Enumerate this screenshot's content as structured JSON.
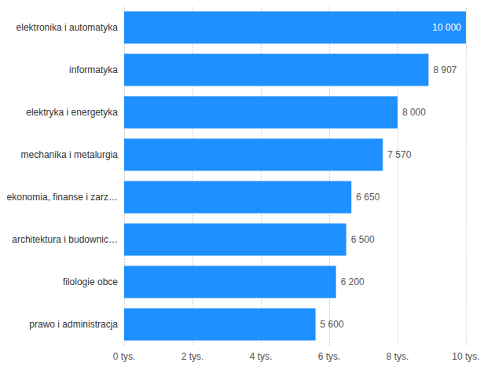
{
  "chart_data": {
    "type": "bar",
    "orientation": "horizontal",
    "categories": [
      "elektronika i automatyka",
      "informatyka",
      "elektryka i energetyka",
      "mechanika i metalurgia",
      "ekonomia, finanse i zarz…",
      "architektura i budownic…",
      "filologie obce",
      "prawo i administracja"
    ],
    "values": [
      10000,
      8907,
      8000,
      7570,
      6650,
      6500,
      6200,
      5600
    ],
    "value_labels": [
      "10 000",
      "8 907",
      "8 000",
      "7 570",
      "6 650",
      "6 500",
      "6 200",
      "5 600"
    ],
    "color": "#1e90ff",
    "xlim": [
      0,
      10000
    ],
    "xticks": [
      {
        "value": 0,
        "label": "0 tys."
      },
      {
        "value": 2000,
        "label": "2 tys."
      },
      {
        "value": 4000,
        "label": "4 tys."
      },
      {
        "value": 6000,
        "label": "6 tys."
      },
      {
        "value": 8000,
        "label": "8 tys."
      },
      {
        "value": 10000,
        "label": "10 tys."
      }
    ],
    "grid": true,
    "data_labels": true
  }
}
